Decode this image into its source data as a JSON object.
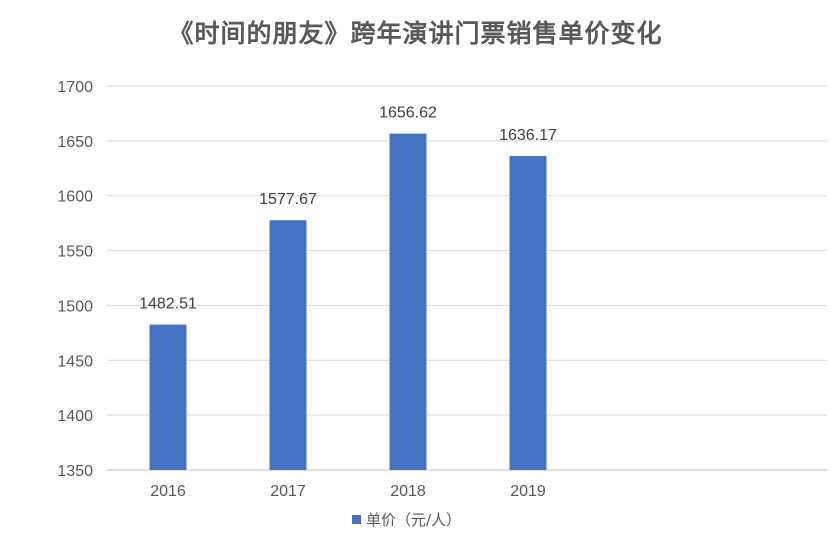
{
  "chart_data": {
    "type": "bar",
    "title": "《时间的朋友》跨年演讲门票销售单价变化",
    "categories": [
      "2016",
      "2017",
      "2018",
      "2019"
    ],
    "series": [
      {
        "name": "单价（元/人）",
        "values": [
          1482.51,
          1577.67,
          1656.62,
          1636.17
        ],
        "data_labels": [
          "1482.51",
          "1577.67",
          "1656.62",
          "1636.17"
        ],
        "color": "#4472C4"
      }
    ],
    "y_ticks": [
      "1350",
      "1400",
      "1450",
      "1500",
      "1550",
      "1600",
      "1650",
      "1700"
    ],
    "ylim": [
      1350,
      1700
    ],
    "grid": true,
    "legend_position": "bottom",
    "xlabel": "",
    "ylabel": ""
  }
}
